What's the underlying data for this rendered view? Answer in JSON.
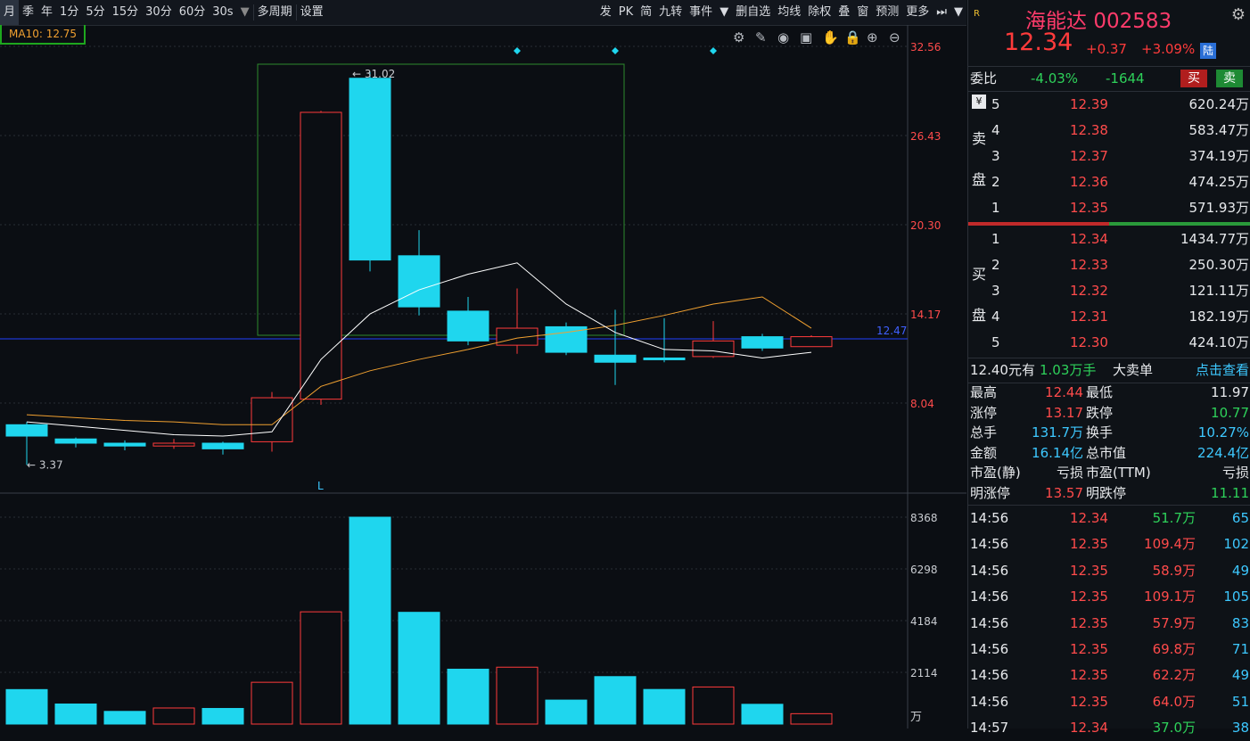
{
  "toolbar": {
    "periods": [
      "月",
      "季",
      "年",
      "1分",
      "5分",
      "15分",
      "30分",
      "60分",
      "30s"
    ],
    "multi_period": "多周期",
    "settings": "设置",
    "right_items": [
      "发",
      "PK",
      "简",
      "九转",
      "事件",
      "删自选",
      "均线",
      "除权",
      "叠",
      "窗",
      "预测",
      "更多"
    ]
  },
  "ma_label": "MA10: 12.75",
  "price_axis": [
    "32.56",
    "26.43",
    "20.30",
    "14.17",
    "8.04"
  ],
  "current_line_label": "12.47",
  "high_marker": "31.02",
  "low_marker": "3.37",
  "low_letter": "L",
  "volume_axis": [
    "8368",
    "6298",
    "4184",
    "2114"
  ],
  "volume_unit": "万",
  "colors": {
    "up": "#ff3b3b",
    "down": "#1fd6ee",
    "ma_white": "#ffffff",
    "ma_orange": "#f0a030",
    "accent_blue": "#2060ff"
  },
  "chart_data": {
    "type": "candlestick",
    "candles": [
      {
        "open": 6.2,
        "close": 5.4,
        "high": 6.4,
        "low": 3.37
      },
      {
        "open": 5.2,
        "close": 4.9,
        "high": 5.3,
        "low": 4.6
      },
      {
        "open": 4.9,
        "close": 4.7,
        "high": 5.1,
        "low": 4.4
      },
      {
        "open": 4.7,
        "close": 4.9,
        "high": 5.2,
        "low": 4.5
      },
      {
        "open": 4.9,
        "close": 4.5,
        "high": 5.0,
        "low": 4.1
      },
      {
        "open": 5.0,
        "close": 8.1,
        "high": 8.5,
        "low": 4.3
      },
      {
        "open": 8.0,
        "close": 28.2,
        "high": 28.3,
        "low": 7.6
      },
      {
        "open": 30.6,
        "close": 17.8,
        "high": 31.02,
        "low": 17.0
      },
      {
        "open": 18.1,
        "close": 14.5,
        "high": 19.9,
        "low": 13.9
      },
      {
        "open": 14.2,
        "close": 12.1,
        "high": 15.2,
        "low": 11.8
      },
      {
        "open": 11.8,
        "close": 13.0,
        "high": 15.8,
        "low": 11.2
      },
      {
        "open": 13.1,
        "close": 11.3,
        "high": 13.4,
        "low": 11.1
      },
      {
        "open": 11.1,
        "close": 10.6,
        "high": 14.3,
        "low": 9.0
      },
      {
        "open": 10.9,
        "close": 10.8,
        "high": 13.7,
        "low": 10.6
      },
      {
        "open": 11.0,
        "close": 12.1,
        "high": 13.5,
        "low": 10.9
      },
      {
        "open": 12.4,
        "close": 11.6,
        "high": 12.6,
        "low": 11.4
      },
      {
        "open": 11.7,
        "close": 12.4,
        "high": 12.5,
        "low": 11.7
      }
    ],
    "ma_white": [
      6.4,
      6.1,
      5.8,
      5.5,
      5.4,
      5.7,
      10.8,
      14.0,
      15.7,
      16.8,
      17.6,
      14.7,
      12.7,
      11.5,
      11.4,
      10.9,
      11.3
    ],
    "ma_orange": [
      6.9,
      6.7,
      6.5,
      6.4,
      6.2,
      6.2,
      8.9,
      10.0,
      10.8,
      11.5,
      12.3,
      12.7,
      13.2,
      13.9,
      14.7,
      15.2,
      13.0
    ],
    "volume": [
      1395,
      812,
      513,
      650,
      632,
      1690,
      4540,
      8368,
      4520,
      2220,
      2300,
      970,
      1920,
      1400,
      1500,
      800,
      420
    ],
    "volume_up": [
      false,
      false,
      false,
      true,
      false,
      true,
      true,
      false,
      false,
      false,
      true,
      false,
      false,
      false,
      true,
      false,
      true
    ],
    "price_ylim": [
      2.2,
      33.6
    ],
    "volume_ylim": [
      0,
      8368
    ]
  },
  "stock": {
    "name": "海能达",
    "code": "002583",
    "price": "12.34",
    "change": "+0.37",
    "change_pct": "+3.09%",
    "market_tag": "陆",
    "small_tag": "R"
  },
  "weibi": {
    "label": "委比",
    "pct": "-4.03%",
    "diff": "-1644",
    "buy": "买",
    "sell": "卖"
  },
  "sell_side_label": [
    "卖",
    "盘"
  ],
  "buy_side_label": [
    "买",
    "盘"
  ],
  "sell_orders": [
    {
      "level": "5",
      "price": "12.39",
      "volume": "620.24万"
    },
    {
      "level": "4",
      "price": "12.38",
      "volume": "583.47万"
    },
    {
      "level": "3",
      "price": "12.37",
      "volume": "374.19万"
    },
    {
      "level": "2",
      "price": "12.36",
      "volume": "474.25万"
    },
    {
      "level": "1",
      "price": "12.35",
      "volume": "571.93万"
    }
  ],
  "buy_orders": [
    {
      "level": "1",
      "price": "12.34",
      "volume": "1434.77万"
    },
    {
      "level": "2",
      "price": "12.33",
      "volume": "250.30万"
    },
    {
      "level": "3",
      "price": "12.32",
      "volume": "121.11万"
    },
    {
      "level": "4",
      "price": "12.31",
      "volume": "182.19万"
    },
    {
      "level": "5",
      "price": "12.30",
      "volume": "424.10万"
    }
  ],
  "big_order": {
    "price": "12.40元有",
    "vol": "1.03万手",
    "label": "大卖单",
    "link": "点击查看"
  },
  "stats": [
    {
      "k1": "最高",
      "v1": "12.44",
      "c1": "rd",
      "k2": "最低",
      "v2": "11.97",
      "c2": "w"
    },
    {
      "k1": "涨停",
      "v1": "13.17",
      "c1": "rd",
      "k2": "跌停",
      "v2": "10.77",
      "c2": "g"
    },
    {
      "k1": "总手",
      "v1": "131.7万",
      "c1": "c",
      "k2": "换手",
      "v2": "10.27%",
      "c2": "c"
    },
    {
      "k1": "金额",
      "v1": "16.14亿",
      "c1": "c",
      "k2": "总市值",
      "v2": "224.4亿",
      "c2": "c"
    },
    {
      "k1": "市盈(静)",
      "v1": "亏损",
      "c1": "w",
      "k2": "市盈(TTM)",
      "v2": "亏损",
      "c2": "w"
    },
    {
      "k1": "明涨停",
      "v1": "13.57",
      "c1": "rd",
      "k2": "明跌停",
      "v2": "11.11",
      "c2": "g"
    }
  ],
  "ticks": [
    {
      "time": "14:56",
      "price": "12.34",
      "amount": "51.7万",
      "amount_color": "g",
      "count": "65"
    },
    {
      "time": "14:56",
      "price": "12.35",
      "amount": "109.4万",
      "amount_color": "rd",
      "count": "102"
    },
    {
      "time": "14:56",
      "price": "12.35",
      "amount": "58.9万",
      "amount_color": "rd",
      "count": "49"
    },
    {
      "time": "14:56",
      "price": "12.35",
      "amount": "109.1万",
      "amount_color": "rd",
      "count": "105"
    },
    {
      "time": "14:56",
      "price": "12.35",
      "amount": "57.9万",
      "amount_color": "rd",
      "count": "83"
    },
    {
      "time": "14:56",
      "price": "12.35",
      "amount": "69.8万",
      "amount_color": "rd",
      "count": "71"
    },
    {
      "time": "14:56",
      "price": "12.35",
      "amount": "62.2万",
      "amount_color": "rd",
      "count": "49"
    },
    {
      "time": "14:56",
      "price": "12.35",
      "amount": "64.0万",
      "amount_color": "rd",
      "count": "51"
    },
    {
      "time": "14:57",
      "price": "12.34",
      "amount": "37.0万",
      "amount_color": "g",
      "count": "38"
    }
  ]
}
